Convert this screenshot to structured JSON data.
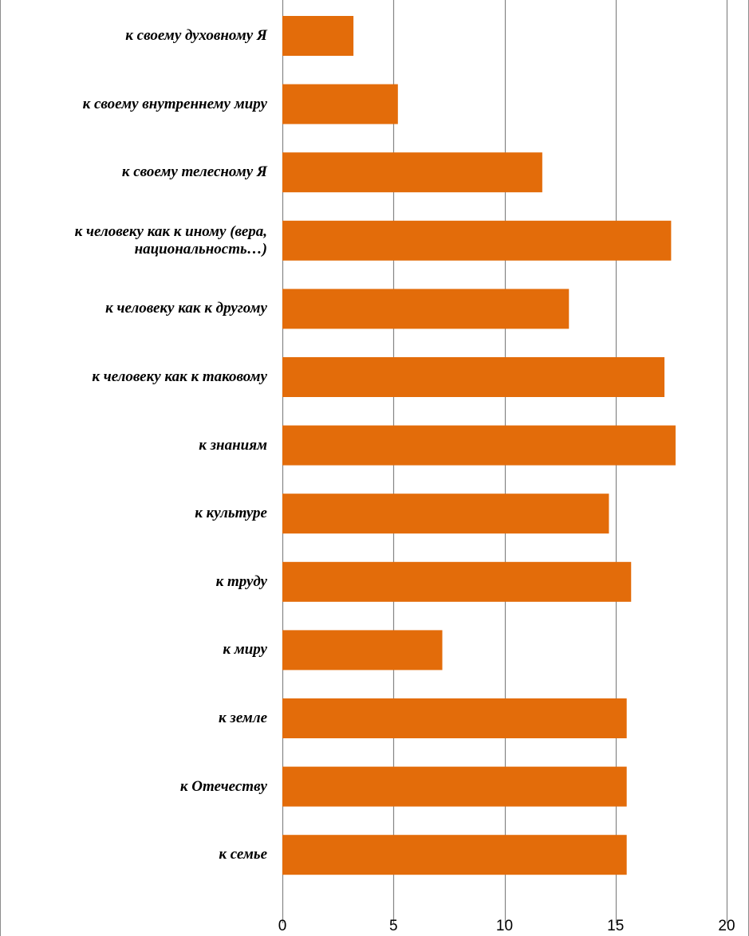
{
  "chart_data": {
    "type": "bar",
    "orientation": "horizontal",
    "categories": [
      "к своему духовному Я",
      "к своему внутреннему миру",
      "к своему телесному Я",
      "к человеку как к иному (вера,\nнациональность…)",
      "к человеку как к другому",
      "к человеку как к таковому",
      "к знаниям",
      "к культуре",
      "к труду",
      "к миру",
      "к земле",
      "к Отечеству",
      "к семье"
    ],
    "values": [
      3.2,
      5.2,
      11.7,
      17.5,
      12.9,
      17.2,
      17.7,
      14.7,
      15.7,
      7.2,
      15.5,
      15.5,
      15.5
    ],
    "xlim": [
      0,
      20
    ],
    "x_ticks": [
      "0",
      "5",
      "10",
      "15",
      "20"
    ],
    "grid": true,
    "legend": "none",
    "title": "",
    "xlabel": "",
    "ylabel": "",
    "bar_color": "#E36C0A",
    "grid_color": "#868686"
  }
}
